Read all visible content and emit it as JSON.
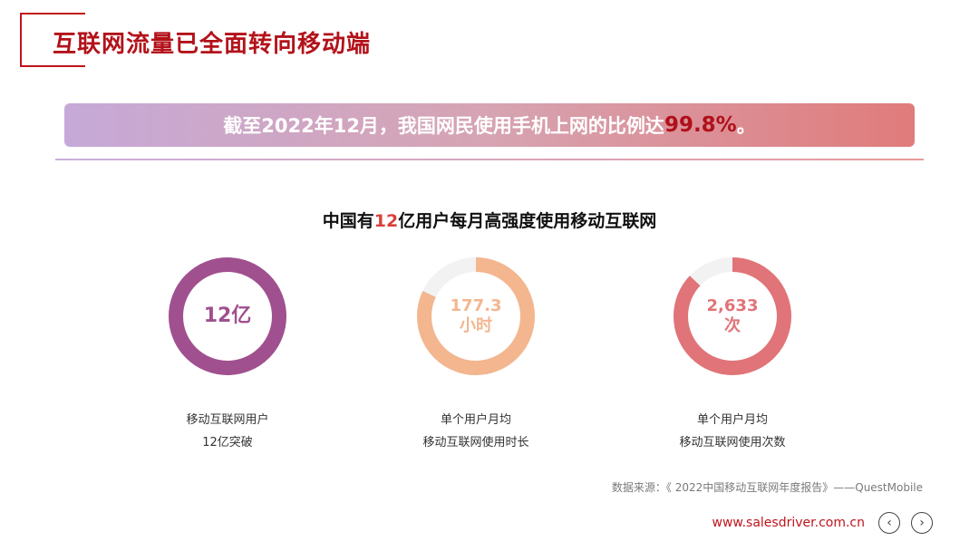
{
  "page_title": "互联网流量已全面转向移动端",
  "banner": {
    "text_prefix": "截至2022年12月，我国网民使用手机上网的比例达",
    "highlight": "99.8%",
    "text_suffix": "。"
  },
  "subtitle": {
    "prefix": "中国有",
    "highlight": "12",
    "suffix": "亿用户每月高强度使用移动互联网"
  },
  "stats": [
    {
      "value_line1": "12亿",
      "value_line2": "",
      "caption_line1": "移动互联网用户",
      "caption_line2": "12亿突破",
      "color": "#a0508f",
      "fill": 1.0
    },
    {
      "value_line1": "177.3",
      "value_line2": "小时",
      "caption_line1": "单个用户月均",
      "caption_line2": "移动互联网使用时长",
      "color": "#f3b68f",
      "fill": 0.82
    },
    {
      "value_line1": "2,633",
      "value_line2": "次",
      "caption_line1": "单个用户月均",
      "caption_line2": "移动互联网使用次数",
      "color": "#e07478",
      "fill": 0.87
    }
  ],
  "track_color": "#f2f2f2",
  "source": "数据来源：《 2022中国移动互联网年度报告》——QuestMobile",
  "website": "www.salesdriver.com.cn",
  "nav": {
    "prev_icon": "‹",
    "next_icon": "›"
  }
}
